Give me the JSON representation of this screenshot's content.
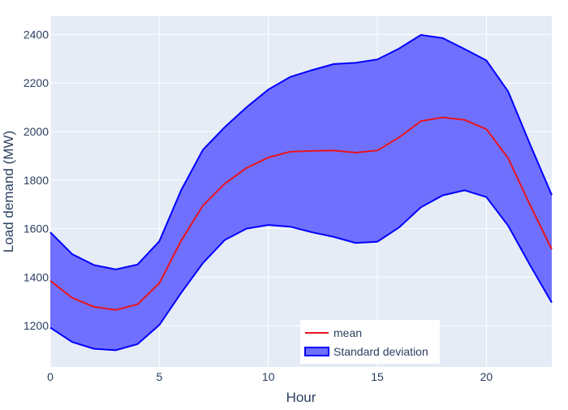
{
  "chart_data": {
    "type": "line",
    "title": "",
    "xlabel": "Hour",
    "ylabel": "Load demand (MW)",
    "xlim": [
      0,
      23
    ],
    "ylim": [
      1030,
      2475
    ],
    "x_ticks": [
      0,
      5,
      10,
      15,
      20
    ],
    "y_ticks": [
      1200,
      1400,
      1600,
      1800,
      2000,
      2200,
      2400
    ],
    "grid": true,
    "legend_position": "bottom-center",
    "x": [
      0,
      1,
      2,
      3,
      4,
      5,
      6,
      7,
      8,
      9,
      10,
      11,
      12,
      13,
      14,
      15,
      16,
      17,
      18,
      19,
      20,
      21,
      22,
      23
    ],
    "series": [
      {
        "name": "mean",
        "color": "#e8141c",
        "values": [
          1385,
          1315,
          1278,
          1265,
          1288,
          1375,
          1550,
          1695,
          1785,
          1850,
          1893,
          1917,
          1920,
          1922,
          1913,
          1922,
          1976,
          2043,
          2058,
          2048,
          2010,
          1890,
          1698,
          1515
        ]
      }
    ],
    "band": {
      "name": "Standard deviation",
      "line_color": "#0000ff",
      "fill_color": "#7070ff",
      "upper": [
        1585,
        1495,
        1450,
        1432,
        1452,
        1548,
        1758,
        1925,
        2018,
        2100,
        2173,
        2225,
        2253,
        2278,
        2283,
        2297,
        2342,
        2398,
        2385,
        2340,
        2293,
        2165,
        1948,
        1738
      ],
      "lower": [
        1192,
        1133,
        1105,
        1099,
        1124,
        1203,
        1335,
        1458,
        1553,
        1600,
        1615,
        1608,
        1585,
        1566,
        1541,
        1546,
        1605,
        1688,
        1737,
        1758,
        1730,
        1612,
        1450,
        1295
      ]
    }
  }
}
